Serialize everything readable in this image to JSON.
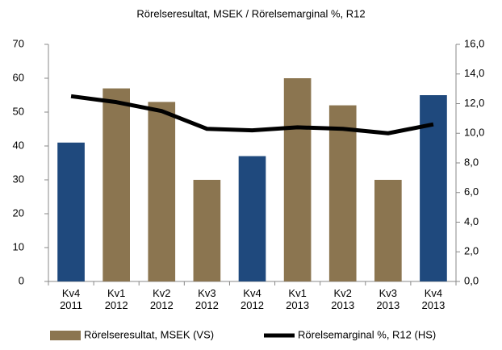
{
  "chart_data": {
    "type": "bar_line",
    "title": "Rörelseresultat, MSEK / Rörelsemarginal %, R12",
    "categories": [
      "Kv4\n2011",
      "Kv1\n2012",
      "Kv2\n2012",
      "Kv3\n2012",
      "Kv4\n2012",
      "Kv1\n2013",
      "Kv2\n2013",
      "Kv3\n2013",
      "Kv4\n2013"
    ],
    "series": [
      {
        "name": "Rörelseresultat, MSEK (VS)",
        "type": "bar",
        "color": "#8b7550",
        "colors": [
          "#1f497d",
          "#8b7550",
          "#8b7550",
          "#8b7550",
          "#1f497d",
          "#8b7550",
          "#8b7550",
          "#8b7550",
          "#1f497d"
        ],
        "values": [
          41,
          57,
          53,
          30,
          37,
          60,
          52,
          30,
          55
        ]
      },
      {
        "name": "Rörelsemarginal %, R12 (HS)",
        "type": "line",
        "axis": "y2",
        "color": "#000000",
        "values": [
          12.5,
          12.1,
          11.5,
          10.3,
          10.2,
          10.4,
          10.3,
          10.0,
          10.6
        ]
      }
    ],
    "ylim": [
      0,
      70
    ],
    "yticks": [
      0,
      10,
      20,
      30,
      40,
      50,
      60,
      70
    ],
    "y2lim": [
      0,
      16
    ],
    "y2ticks": [
      {
        "value": 0,
        "label": "0,0"
      },
      {
        "value": 2,
        "label": "2,0"
      },
      {
        "value": 4,
        "label": "4,0"
      },
      {
        "value": 6,
        "label": "6,0"
      },
      {
        "value": 8,
        "label": "8,0"
      },
      {
        "value": 10,
        "label": "10,0"
      },
      {
        "value": 12,
        "label": "12,0"
      },
      {
        "value": 14,
        "label": "14,0"
      },
      {
        "value": 16,
        "label": "16,0"
      }
    ],
    "legend": "bottom"
  }
}
